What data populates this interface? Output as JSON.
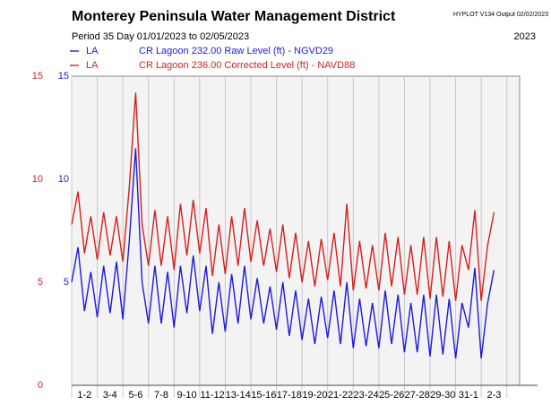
{
  "chart_data": {
    "type": "line",
    "title": "Monterey Peninsula Water Management District",
    "program": "HYPLOT V134  Output 02/02/2023",
    "period": "Period  35 Day    01/01/2023  to  02/05/2023",
    "year": "2023",
    "categories": [
      "1-2",
      "3-4",
      "5-6",
      "7-8",
      "9-10",
      "11-12",
      "13-14",
      "15-16",
      "17-18",
      "19-20",
      "21-22",
      "23-24",
      "25-26",
      "27-28",
      "29-30",
      "31-1",
      "2-3"
    ],
    "xlim": [
      0,
      35
    ],
    "xticks": [
      0,
      2,
      4,
      6,
      8,
      10,
      12,
      14,
      16,
      18,
      20,
      22,
      24,
      26,
      28,
      30,
      32,
      34
    ],
    "ylim": [
      0,
      15
    ],
    "yticks": [
      5,
      10,
      15
    ],
    "y2lim": [
      0,
      15
    ],
    "y2ticks": [
      0,
      5,
      10,
      15
    ],
    "x": [
      0,
      0.5,
      1,
      1.5,
      2,
      2.5,
      3,
      3.5,
      4,
      4.5,
      5,
      5.5,
      6,
      6.5,
      7,
      7.5,
      8,
      8.5,
      9,
      9.5,
      10,
      10.5,
      11,
      11.5,
      12,
      12.5,
      13,
      13.5,
      14,
      14.5,
      15,
      15.5,
      16,
      16.5,
      17,
      17.5,
      18,
      18.5,
      19,
      19.5,
      20,
      20.5,
      21,
      21.5,
      22,
      22.5,
      23,
      23.5,
      24,
      24.5,
      25,
      25.5,
      26,
      26.5,
      27,
      27.5,
      28,
      28.5,
      29,
      29.5,
      30,
      30.5,
      31,
      31.5,
      32,
      32.5,
      33
    ],
    "series": [
      {
        "name": "LA",
        "label": "CR Lagoon  232.00 Raw Level (ft) - NGVD29",
        "color": "#1c1cd8",
        "axis": "y",
        "values": [
          5.0,
          6.7,
          3.6,
          5.5,
          3.3,
          5.8,
          3.5,
          6.0,
          3.2,
          7.0,
          11.5,
          5.0,
          3.0,
          5.8,
          3.0,
          5.5,
          2.8,
          5.8,
          3.5,
          6.3,
          3.6,
          5.8,
          2.5,
          5.0,
          2.6,
          5.4,
          3.0,
          5.8,
          3.2,
          5.2,
          3.0,
          4.8,
          2.7,
          5.0,
          2.4,
          4.6,
          2.2,
          4.2,
          2.0,
          4.3,
          2.3,
          4.6,
          2.0,
          5.0,
          1.8,
          4.2,
          1.9,
          4.0,
          1.8,
          4.6,
          2.0,
          4.4,
          1.6,
          4.0,
          1.6,
          4.4,
          1.4,
          4.4,
          1.5,
          4.2,
          1.3,
          4.0,
          2.8,
          5.7,
          1.3,
          4.0,
          5.6
        ]
      },
      {
        "name": "LA",
        "label": "CR Lagoon  236.00 Corrected Level (ft) - NAVD88",
        "color": "#d42020",
        "axis": "y2",
        "values": [
          7.8,
          9.4,
          6.4,
          8.2,
          6.1,
          8.4,
          6.3,
          8.2,
          6.0,
          9.6,
          14.2,
          7.8,
          5.8,
          8.5,
          5.8,
          8.2,
          5.6,
          8.8,
          6.3,
          9.0,
          6.4,
          8.6,
          5.3,
          7.8,
          5.4,
          8.2,
          5.8,
          8.6,
          6.0,
          8.0,
          5.8,
          7.6,
          5.5,
          7.8,
          5.2,
          7.4,
          5.0,
          7.0,
          4.8,
          7.1,
          5.1,
          7.4,
          4.8,
          8.8,
          4.6,
          7.0,
          4.7,
          6.8,
          4.6,
          7.4,
          4.8,
          7.2,
          4.4,
          6.8,
          4.4,
          7.2,
          4.2,
          7.2,
          4.3,
          7.0,
          4.1,
          6.8,
          5.6,
          8.5,
          4.1,
          6.8,
          8.4
        ]
      }
    ]
  }
}
